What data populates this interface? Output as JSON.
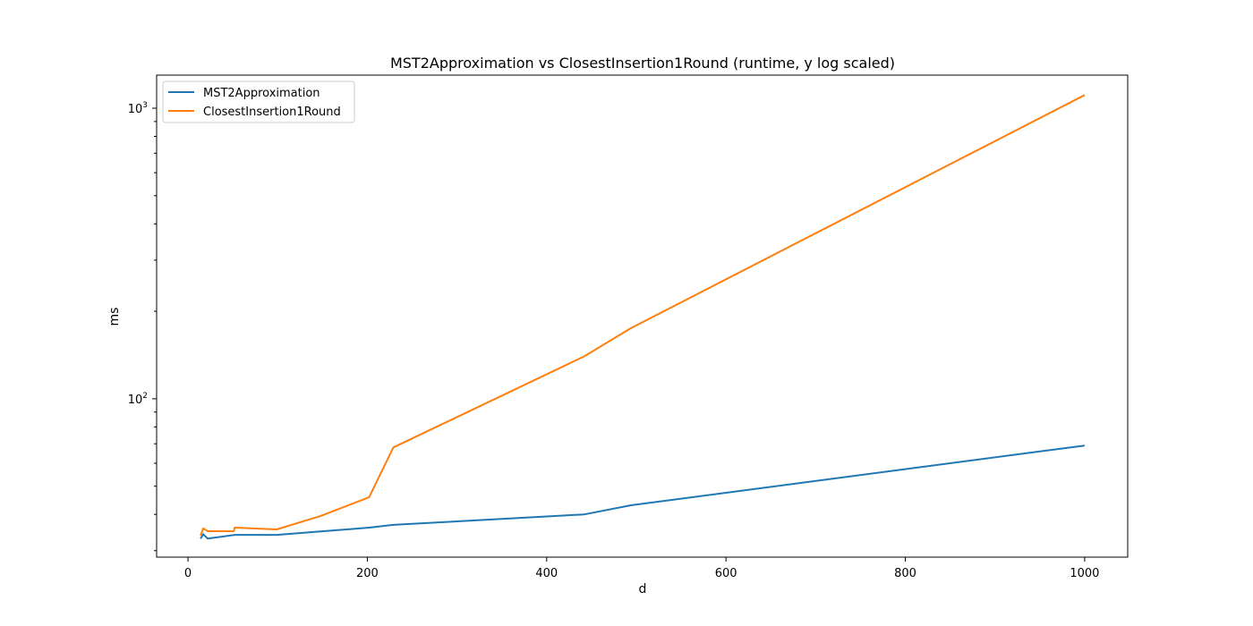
{
  "chart_data": {
    "type": "line",
    "title": "MST2Approximation vs ClosestInsertion1Round (runtime, y log scaled)",
    "xlabel": "d",
    "ylabel": "ms",
    "y_scale": "log",
    "xlim": [
      -35,
      1048
    ],
    "ylim": [
      28.5,
      1300
    ],
    "x_ticks": [
      0,
      200,
      400,
      600,
      800,
      1000
    ],
    "x_tick_labels": [
      "0",
      "200",
      "400",
      "600",
      "800",
      "1000"
    ],
    "y_major_ticks": [
      100,
      1000
    ],
    "y_tick_labels": [
      {
        "base": "10",
        "exp": "2"
      },
      {
        "base": "10",
        "exp": "3"
      }
    ],
    "y_minor_ticks": [
      30,
      40,
      50,
      60,
      70,
      80,
      90,
      200,
      300,
      400,
      500,
      600,
      700,
      800,
      900
    ],
    "grid": false,
    "legend_position": "top-left",
    "series": [
      {
        "name": "MST2Approximation",
        "color": "#1f77b4",
        "x": [
          14,
          17,
          22,
          52,
          99,
          202,
          229,
          442,
          494,
          1000
        ],
        "y": [
          33.0,
          34.2,
          33.0,
          34.0,
          34.0,
          36.0,
          36.8,
          40.0,
          43.0,
          69.0
        ]
      },
      {
        "name": "ClosestInsertion1Round",
        "color": "#ff7f0e",
        "x": [
          14,
          17,
          22,
          51,
          52,
          99,
          148,
          202,
          229,
          442,
          494,
          1000
        ],
        "y": [
          33.8,
          35.8,
          35.0,
          35.0,
          36.0,
          35.5,
          39.5,
          45.8,
          68.0,
          140.0,
          175.0,
          1110.0
        ]
      }
    ]
  }
}
